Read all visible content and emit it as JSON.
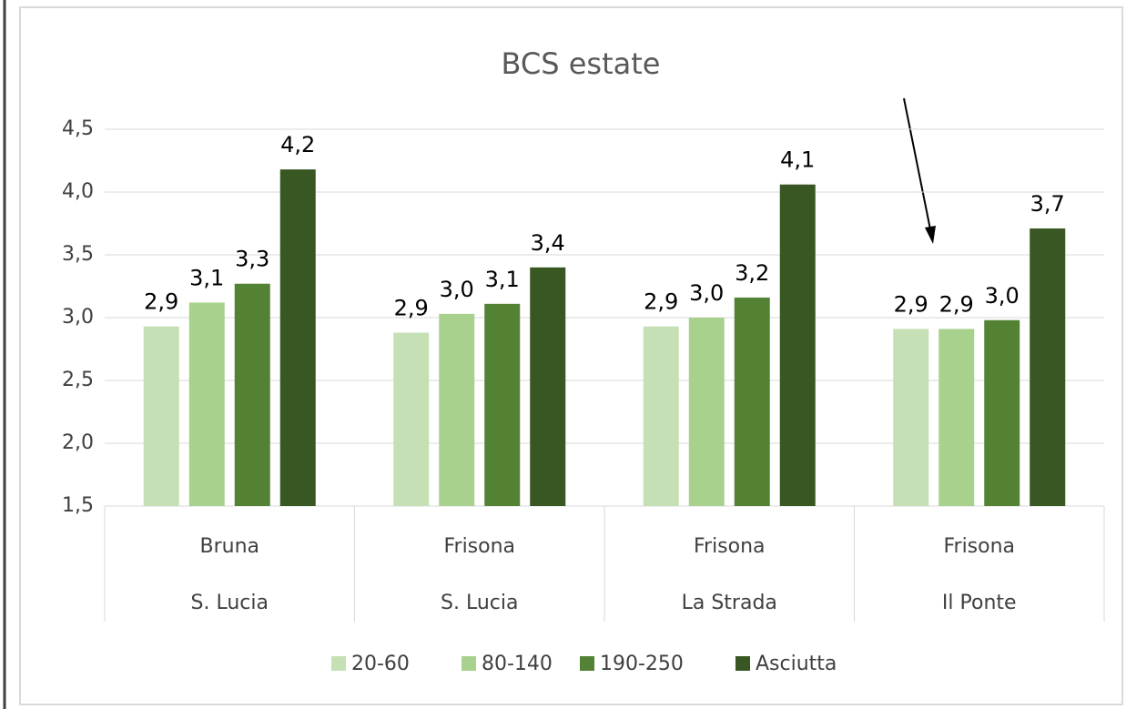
{
  "chart_data": {
    "type": "bar",
    "title": "BCS estate",
    "categories": [
      [
        "Bruna",
        "S. Lucia"
      ],
      [
        "Frisona",
        "S. Lucia"
      ],
      [
        "Frisona",
        "La Strada"
      ],
      [
        "Frisona",
        "Il Ponte"
      ]
    ],
    "series": [
      {
        "name": "20-60",
        "color": "#c5e0b4",
        "values": [
          2.93,
          2.88,
          2.93,
          2.91
        ],
        "value_labels": [
          "2,9",
          "2,9",
          "2,9",
          "2,9"
        ]
      },
      {
        "name": "80-140",
        "color": "#a9d18e",
        "values": [
          3.12,
          3.03,
          3.0,
          2.91
        ],
        "value_labels": [
          "3,1",
          "3,0",
          "3,0",
          "2,9"
        ]
      },
      {
        "name": "190-250",
        "color": "#548235",
        "values": [
          3.27,
          3.11,
          3.16,
          2.98
        ],
        "value_labels": [
          "3,3",
          "3,1",
          "3,2",
          "3,0"
        ]
      },
      {
        "name": "Asciutta",
        "color": "#385723",
        "values": [
          4.18,
          3.4,
          4.06,
          3.71
        ],
        "value_labels": [
          "4,2",
          "3,4",
          "4,1",
          "3,7"
        ]
      }
    ],
    "ylim": [
      1.5,
      4.5
    ],
    "yticks": [
      {
        "value": 1.5,
        "label": "1,5"
      },
      {
        "value": 2.0,
        "label": "2,0"
      },
      {
        "value": 2.5,
        "label": "2,5"
      },
      {
        "value": 3.0,
        "label": "3,0"
      },
      {
        "value": 3.5,
        "label": "3,5"
      },
      {
        "value": 4.0,
        "label": "4,0"
      },
      {
        "value": 4.5,
        "label": "4,5"
      }
    ],
    "grid": true,
    "legend": "bottom"
  }
}
